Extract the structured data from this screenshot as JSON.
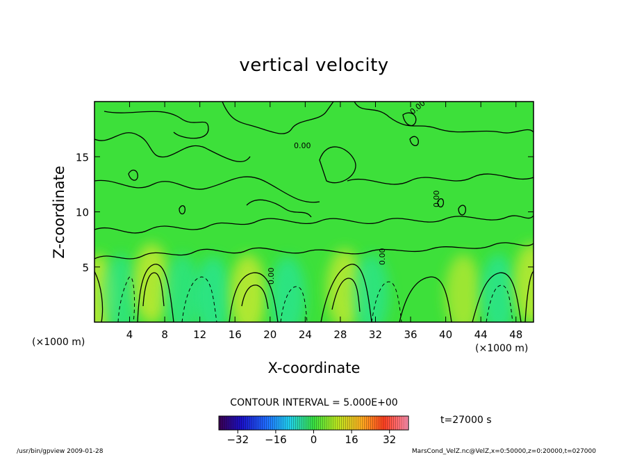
{
  "chart_data": {
    "type": "heatmap",
    "title": "vertical velocity",
    "xlabel": "X-coordinate",
    "ylabel": "Z-coordinate",
    "x_unit_left": "(×1000 m)",
    "x_unit_right": "(×1000 m)",
    "xlim": [
      0,
      50
    ],
    "ylim": [
      0,
      20
    ],
    "x_ticks": [
      4,
      8,
      12,
      16,
      20,
      24,
      28,
      32,
      36,
      40,
      44,
      48
    ],
    "y_ticks": [
      5,
      10,
      15
    ],
    "contour_interval_text": "CONTOUR INTERVAL = 5.000E+00",
    "contour_interval": 5,
    "contour_label": "0.00",
    "time_text": "t=27000 s",
    "colorbar": {
      "range": [
        -40,
        40
      ],
      "ticks": [
        -32,
        -16,
        0,
        16,
        32
      ],
      "tick_labels": [
        "−32",
        "−16",
        "0",
        "16",
        "32"
      ]
    },
    "colors": {
      "background_field": "#3de03a",
      "updraft": "#b5e830",
      "downdraft": "#28e59a"
    },
    "cells": [
      {
        "x": 0.3,
        "z": 2.5,
        "value": 14
      },
      {
        "x": 3.0,
        "z": 2.5,
        "value": -5
      },
      {
        "x": 6.5,
        "z": 3.5,
        "value": 12
      },
      {
        "x": 10.0,
        "z": 2.5,
        "value": -5
      },
      {
        "x": 13.5,
        "z": 2.3,
        "value": -7
      },
      {
        "x": 17.5,
        "z": 2.5,
        "value": 13
      },
      {
        "x": 22.0,
        "z": 2.3,
        "value": -7
      },
      {
        "x": 28.5,
        "z": 3.0,
        "value": 10
      },
      {
        "x": 31.5,
        "z": 2.5,
        "value": -6
      },
      {
        "x": 42.0,
        "z": 2.5,
        "value": 8
      },
      {
        "x": 46.0,
        "z": 2.5,
        "value": -7
      },
      {
        "x": 49.8,
        "z": 3.5,
        "value": 10
      }
    ]
  },
  "footer": {
    "left": "/usr/bin/gpview  2009-01-28",
    "right": "MarsCond_VelZ.nc@VelZ,x=0:50000,z=0:20000,t=027000"
  }
}
